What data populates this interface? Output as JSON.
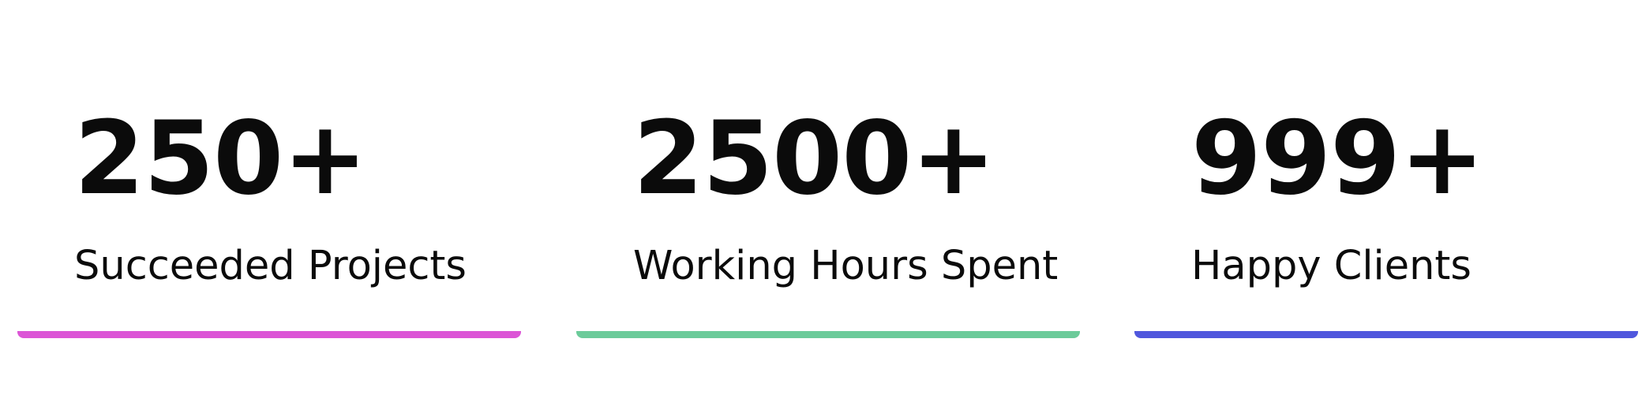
{
  "stats": [
    {
      "value": "250+",
      "label": "Succeeded Projects",
      "color": "#dc55d6"
    },
    {
      "value": "2500+",
      "label": "Working Hours Spent",
      "color": "#6ccb9a"
    },
    {
      "value": "999+",
      "label": "Happy Clients",
      "color": "#5057dd"
    }
  ]
}
